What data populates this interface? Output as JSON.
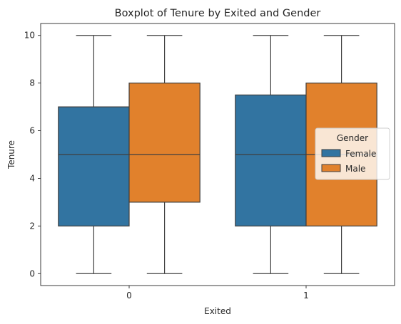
{
  "chart_data": {
    "type": "boxplot",
    "title": "Boxplot of Tenure by Exited and Gender",
    "xlabel": "Exited",
    "ylabel": "Tenure",
    "categories": [
      "0",
      "1"
    ],
    "yticks": [
      0,
      2,
      4,
      6,
      8,
      10
    ],
    "ylim": [
      -0.5,
      10.5
    ],
    "grid": false,
    "legend": {
      "title": "Gender",
      "placement": "center-right"
    },
    "series": [
      {
        "name": "Female",
        "color": "#3274a1",
        "boxes": [
          {
            "category": "0",
            "min": 0,
            "q1": 2,
            "median": 5,
            "q3": 7,
            "max": 10
          },
          {
            "category": "1",
            "min": 0,
            "q1": 2,
            "median": 5,
            "q3": 7.5,
            "max": 10
          }
        ]
      },
      {
        "name": "Male",
        "color": "#e1812c",
        "boxes": [
          {
            "category": "0",
            "min": 0,
            "q1": 3,
            "median": 5,
            "q3": 8,
            "max": 10
          },
          {
            "category": "1",
            "min": 0,
            "q1": 2,
            "median": 5,
            "q3": 8,
            "max": 10
          }
        ]
      }
    ],
    "line_color": "#3f3f3f"
  }
}
